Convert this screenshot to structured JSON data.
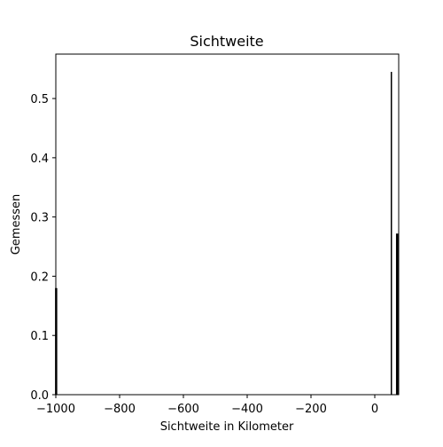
{
  "chart_data": {
    "type": "bar",
    "title": "Sichtweite",
    "xlabel": "Sichtweite in Kilometer",
    "ylabel": "Gemessen",
    "xlim": [
      -1000,
      75
    ],
    "ylim": [
      0,
      0.575
    ],
    "xticks": [
      -1000,
      -800,
      -600,
      -400,
      -200,
      0
    ],
    "xtick_labels": [
      "−1000",
      "−800",
      "−600",
      "−400",
      "−200",
      "0"
    ],
    "yticks": [
      0.0,
      0.1,
      0.2,
      0.3,
      0.4,
      0.5
    ],
    "ytick_labels": [
      "0.0",
      "0.1",
      "0.2",
      "0.3",
      "0.4",
      "0.5"
    ],
    "grid": false,
    "bar_color": "#000000",
    "bars": [
      {
        "x": -999,
        "value": 0.18
      },
      {
        "x": 52,
        "value": 0.545
      },
      {
        "x": 70,
        "value": 0.272
      }
    ]
  }
}
